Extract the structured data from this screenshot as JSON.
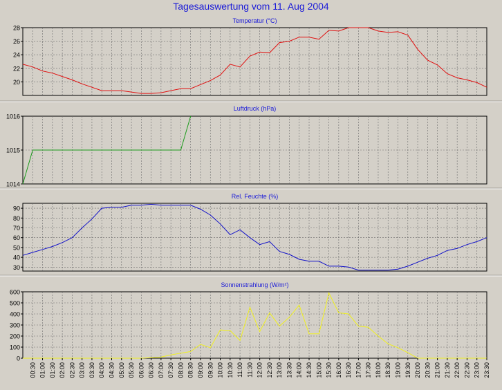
{
  "title": "Tagesauswertung vom 11. Aug 2004",
  "colors": {
    "background": "#d4d0c8",
    "title": "#1a1ad8",
    "temperature": "#e01010",
    "pressure": "#1a9a1a",
    "humidity": "#1010c8",
    "radiation": "#f0f020"
  },
  "time_labels": [
    "00:30",
    "01:00",
    "01:30",
    "02:00",
    "02:30",
    "03:00",
    "03:30",
    "04:00",
    "04:30",
    "05:00",
    "05:30",
    "06:00",
    "06:30",
    "07:00",
    "07:30",
    "08:00",
    "08:30",
    "09:00",
    "09:30",
    "10:00",
    "10:30",
    "11:00",
    "11:30",
    "12:00",
    "12:30",
    "13:00",
    "13:30",
    "14:00",
    "14:30",
    "15:00",
    "15:30",
    "16:00",
    "16:30",
    "17:00",
    "17:30",
    "18:00",
    "18:30",
    "19:00",
    "19:30",
    "20:00",
    "20:30",
    "21:00",
    "21:30",
    "22:00",
    "22:30",
    "23:00",
    "23:30"
  ],
  "chart_data": [
    {
      "type": "line",
      "title": "Temperatur (°C)",
      "ylim": [
        18,
        28
      ],
      "yticks": [
        "20",
        "22",
        "24",
        "26",
        "28"
      ],
      "grid": true,
      "series": [
        {
          "values": [
            22.6,
            22.2,
            21.6,
            21.3,
            20.8,
            20.3,
            19.7,
            19.2,
            18.7,
            18.7,
            18.7,
            18.5,
            18.3,
            18.3,
            18.4,
            18.7,
            19.0,
            19.0,
            19.6,
            20.2,
            21.0,
            22.6,
            22.2,
            23.8,
            24.4,
            24.3,
            25.8,
            26.0,
            26.6,
            26.6,
            26.3,
            27.6,
            27.5,
            28.2,
            28.2,
            28.2,
            27.5,
            27.3,
            27.4,
            26.9,
            24.8,
            23.2,
            22.5,
            21.2,
            20.6,
            20.3,
            19.9,
            19.2
          ]
        }
      ]
    },
    {
      "type": "line",
      "title": "Luftdruck (hPa)",
      "ylim": [
        1014,
        1016
      ],
      "yticks": [
        "1014",
        "1015",
        "1016"
      ],
      "grid": true,
      "series": [
        {
          "values": [
            1014,
            1015,
            1015,
            1015,
            1015,
            1015,
            1015,
            1015,
            1015,
            1015,
            1015,
            1015,
            1015,
            1015,
            1015,
            1015,
            1015,
            1016
          ]
        }
      ]
    },
    {
      "type": "line",
      "title": "Rel. Feuchte (%)",
      "ylim": [
        26,
        95
      ],
      "yticks": [
        "30",
        "40",
        "50",
        "60",
        "70",
        "80",
        "90"
      ],
      "grid": true,
      "series": [
        {
          "values": [
            42,
            45,
            48,
            51,
            55,
            60,
            70,
            79,
            90,
            91,
            91,
            93,
            93,
            94,
            93,
            93,
            93,
            93,
            89,
            83,
            74,
            63,
            68,
            60,
            53,
            56,
            46,
            43,
            38,
            36,
            36,
            31,
            31,
            30,
            27,
            27,
            27,
            27,
            28,
            31,
            35,
            39,
            42,
            47,
            49,
            53,
            56,
            60
          ]
        }
      ]
    },
    {
      "type": "line",
      "title": "Sonnenstrahlung (W/m²)",
      "ylim": [
        0,
        600
      ],
      "yticks": [
        "0",
        "100",
        "200",
        "300",
        "400",
        "500",
        "600"
      ],
      "grid": true,
      "series": [
        {
          "values": [
            0,
            0,
            0,
            0,
            0,
            0,
            0,
            0,
            0,
            0,
            0,
            0,
            0,
            5,
            10,
            30,
            45,
            60,
            125,
            95,
            255,
            250,
            160,
            460,
            240,
            410,
            290,
            370,
            480,
            220,
            220,
            590,
            410,
            400,
            290,
            280,
            200,
            130,
            95,
            50,
            0,
            0,
            0,
            0,
            0,
            0,
            0,
            0
          ]
        }
      ]
    }
  ]
}
